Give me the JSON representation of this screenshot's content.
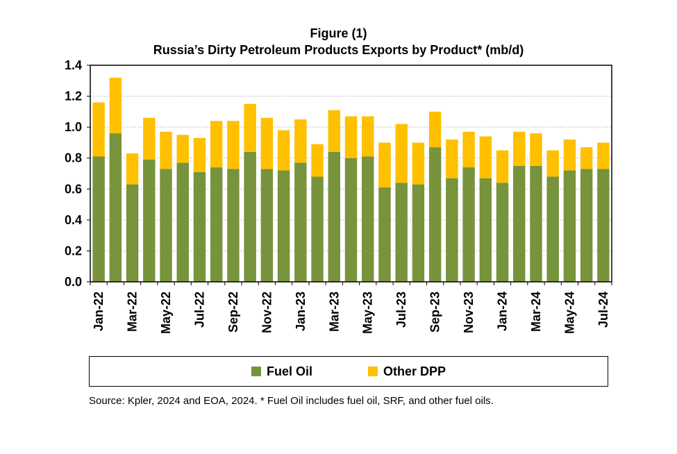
{
  "chart_data": {
    "type": "bar",
    "stacked": true,
    "title": "Figure (1)",
    "subtitle": "Russia’s Dirty Petroleum Products Exports by Product* (mb/d)",
    "categories": [
      "Jan-22",
      "Feb-22",
      "Mar-22",
      "Apr-22",
      "May-22",
      "Jun-22",
      "Jul-22",
      "Aug-22",
      "Sep-22",
      "Oct-22",
      "Nov-22",
      "Dec-22",
      "Jan-23",
      "Feb-23",
      "Mar-23",
      "Apr-23",
      "May-23",
      "Jun-23",
      "Jul-23",
      "Aug-23",
      "Sep-23",
      "Oct-23",
      "Nov-23",
      "Dec-23",
      "Jan-24",
      "Feb-24",
      "Mar-24",
      "Apr-24",
      "May-24",
      "Jun-24",
      "Jul-24"
    ],
    "tick_labels": [
      "Jan-22",
      "Mar-22",
      "May-22",
      "Jul-22",
      "Sep-22",
      "Nov-22",
      "Jan-23",
      "Mar-23",
      "May-23",
      "Jul-23",
      "Sep-23",
      "Nov-23",
      "Jan-24",
      "Mar-24",
      "May-24",
      "Jul-24"
    ],
    "series": [
      {
        "name": "Fuel Oil",
        "color": "#77933C",
        "values": [
          0.81,
          0.96,
          0.63,
          0.79,
          0.73,
          0.77,
          0.71,
          0.74,
          0.73,
          0.84,
          0.73,
          0.72,
          0.77,
          0.68,
          0.84,
          0.8,
          0.81,
          0.61,
          0.64,
          0.63,
          0.87,
          0.67,
          0.74,
          0.67,
          0.64,
          0.75,
          0.75,
          0.68,
          0.72,
          0.73,
          0.73
        ]
      },
      {
        "name": "Other DPP",
        "color": "#FFC000",
        "values": [
          0.35,
          0.36,
          0.2,
          0.27,
          0.24,
          0.18,
          0.22,
          0.3,
          0.31,
          0.31,
          0.33,
          0.26,
          0.28,
          0.21,
          0.27,
          0.27,
          0.26,
          0.29,
          0.38,
          0.27,
          0.23,
          0.25,
          0.23,
          0.27,
          0.21,
          0.22,
          0.21,
          0.17,
          0.2,
          0.14,
          0.17
        ]
      }
    ],
    "ylim": [
      0,
      1.4
    ],
    "yticks": [
      "0.0",
      "0.2",
      "0.4",
      "0.6",
      "0.8",
      "1.0",
      "1.2",
      "1.4"
    ],
    "grid": true,
    "legend_position": "bottom"
  },
  "source_note": "Source: Kpler, 2024 and EOA, 2024. * Fuel Oil includes fuel oil, SRF, and other fuel oils."
}
